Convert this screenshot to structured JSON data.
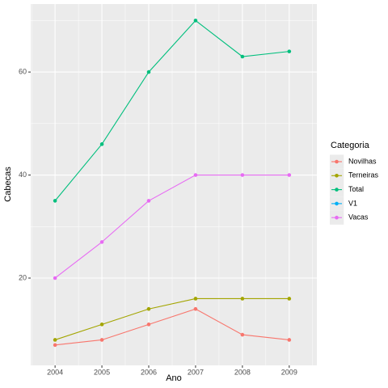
{
  "chart_data": {
    "type": "line",
    "x_label": "Ano",
    "y_label": "Cabecas",
    "legend_title": "Categoria",
    "x": [
      2004,
      2005,
      2006,
      2007,
      2008,
      2009
    ],
    "series": [
      {
        "name": "Novilhas",
        "color": "#F8766D",
        "values": [
          7,
          8,
          11,
          14,
          9,
          8
        ]
      },
      {
        "name": "Terneiras",
        "color": "#A3A500",
        "values": [
          8,
          11,
          14,
          16,
          16,
          16
        ]
      },
      {
        "name": "Total",
        "color": "#00BF7D",
        "values": [
          35,
          46,
          60,
          70,
          63,
          64
        ]
      },
      {
        "name": "V1",
        "color": "#00B0F6",
        "values": [
          null,
          null,
          null,
          null,
          null,
          null
        ]
      },
      {
        "name": "Vacas",
        "color": "#E76BF3",
        "values": [
          20,
          27,
          35,
          40,
          40,
          40
        ]
      }
    ],
    "xlim": [
      2003.48,
      2009.59
    ],
    "xticks": [
      2004,
      2005,
      2006,
      2007,
      2008,
      2009
    ],
    "xminorticks": [
      2003.5,
      2004.5,
      2005.5,
      2006.5,
      2007.5,
      2008.5,
      2009.5
    ],
    "ylim": [
      3.05,
      73.2
    ],
    "yticks": [
      20,
      40,
      60
    ],
    "yminorticks": [
      30,
      50,
      70
    ],
    "grid": true,
    "legend": "right"
  }
}
